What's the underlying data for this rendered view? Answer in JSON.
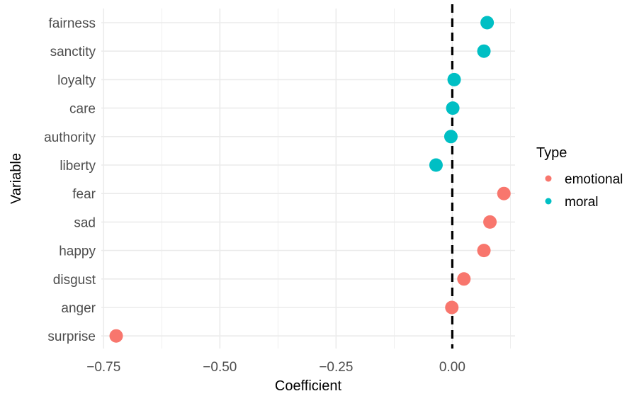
{
  "chart_data": {
    "type": "scatter",
    "xlabel": "Coefficient",
    "ylabel": "Variable",
    "xlim": [
      -0.755,
      0.135
    ],
    "x_ticks": [
      -0.75,
      -0.5,
      -0.25,
      0.0
    ],
    "x_tick_labels": [
      "−0.75",
      "−0.50",
      "−0.25",
      "0.00"
    ],
    "reference_line": {
      "x": 0,
      "style": "dashed",
      "color": "#000000"
    },
    "grid": true,
    "legend": {
      "title": "Type",
      "placement": "right",
      "entries": [
        {
          "label": "emotional",
          "color": "#F8766D"
        },
        {
          "label": "moral",
          "color": "#00BFC4"
        }
      ]
    },
    "categories": [
      "fairness",
      "sanctity",
      "loyalty",
      "care",
      "authority",
      "liberty",
      "fear",
      "sad",
      "happy",
      "disgust",
      "anger",
      "surprise"
    ],
    "points": [
      {
        "variable": "fairness",
        "value": 0.075,
        "type": "moral"
      },
      {
        "variable": "sanctity",
        "value": 0.068,
        "type": "moral"
      },
      {
        "variable": "loyalty",
        "value": 0.004,
        "type": "moral"
      },
      {
        "variable": "care",
        "value": 0.001,
        "type": "moral"
      },
      {
        "variable": "authority",
        "value": -0.003,
        "type": "moral"
      },
      {
        "variable": "liberty",
        "value": -0.035,
        "type": "moral"
      },
      {
        "variable": "fear",
        "value": 0.111,
        "type": "emotional"
      },
      {
        "variable": "sad",
        "value": 0.081,
        "type": "emotional"
      },
      {
        "variable": "happy",
        "value": 0.068,
        "type": "emotional"
      },
      {
        "variable": "disgust",
        "value": 0.025,
        "type": "emotional"
      },
      {
        "variable": "anger",
        "value": -0.001,
        "type": "emotional"
      },
      {
        "variable": "surprise",
        "value": -0.723,
        "type": "emotional"
      }
    ]
  }
}
